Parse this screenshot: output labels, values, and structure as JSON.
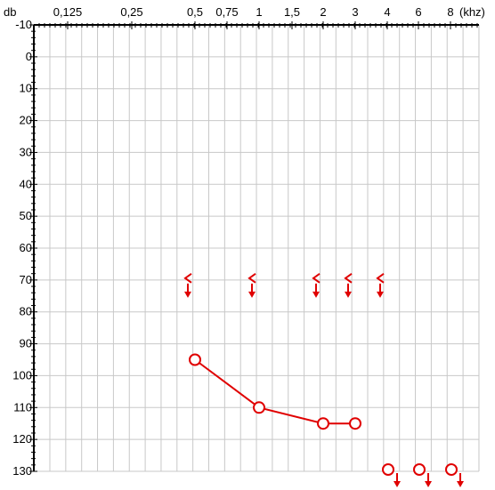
{
  "chart_data": {
    "type": "line",
    "title": "",
    "xlabel": "",
    "ylabel": "",
    "y_unit_label": "db",
    "x_unit_label": "(khz)",
    "x_ticks": [
      "0,125",
      "0,25",
      "0,5",
      "0,75",
      "1",
      "1,5",
      "2",
      "3",
      "4",
      "6",
      "8"
    ],
    "y_ticks": [
      -10,
      0,
      10,
      20,
      30,
      40,
      50,
      60,
      70,
      80,
      90,
      100,
      110,
      120,
      130
    ],
    "ylim": [
      -10,
      130
    ],
    "y_inverted": true,
    "grid": true,
    "colors": {
      "series": "#e00000",
      "grid": "#c8c8c8",
      "axis": "#000000"
    },
    "series": [
      {
        "symbol": "circle",
        "connected": true,
        "points": [
          {
            "x": "0,5",
            "y": 95
          },
          {
            "x": "1",
            "y": 110
          },
          {
            "x": "2",
            "y": 115
          },
          {
            "x": "3",
            "y": 115
          }
        ]
      },
      {
        "symbol": "circle-no-response",
        "connected": false,
        "points": [
          {
            "x": "4",
            "y": 130
          },
          {
            "x": "6",
            "y": 130
          },
          {
            "x": "8",
            "y": 130
          }
        ]
      },
      {
        "symbol": "bone-left-no-response",
        "connected": false,
        "points": [
          {
            "x": "0,5",
            "y": 70
          },
          {
            "x": "1",
            "y": 70
          },
          {
            "x": "2",
            "y": 70
          },
          {
            "x": "3",
            "y": 70
          },
          {
            "x": "4",
            "y": 70
          }
        ]
      }
    ]
  }
}
